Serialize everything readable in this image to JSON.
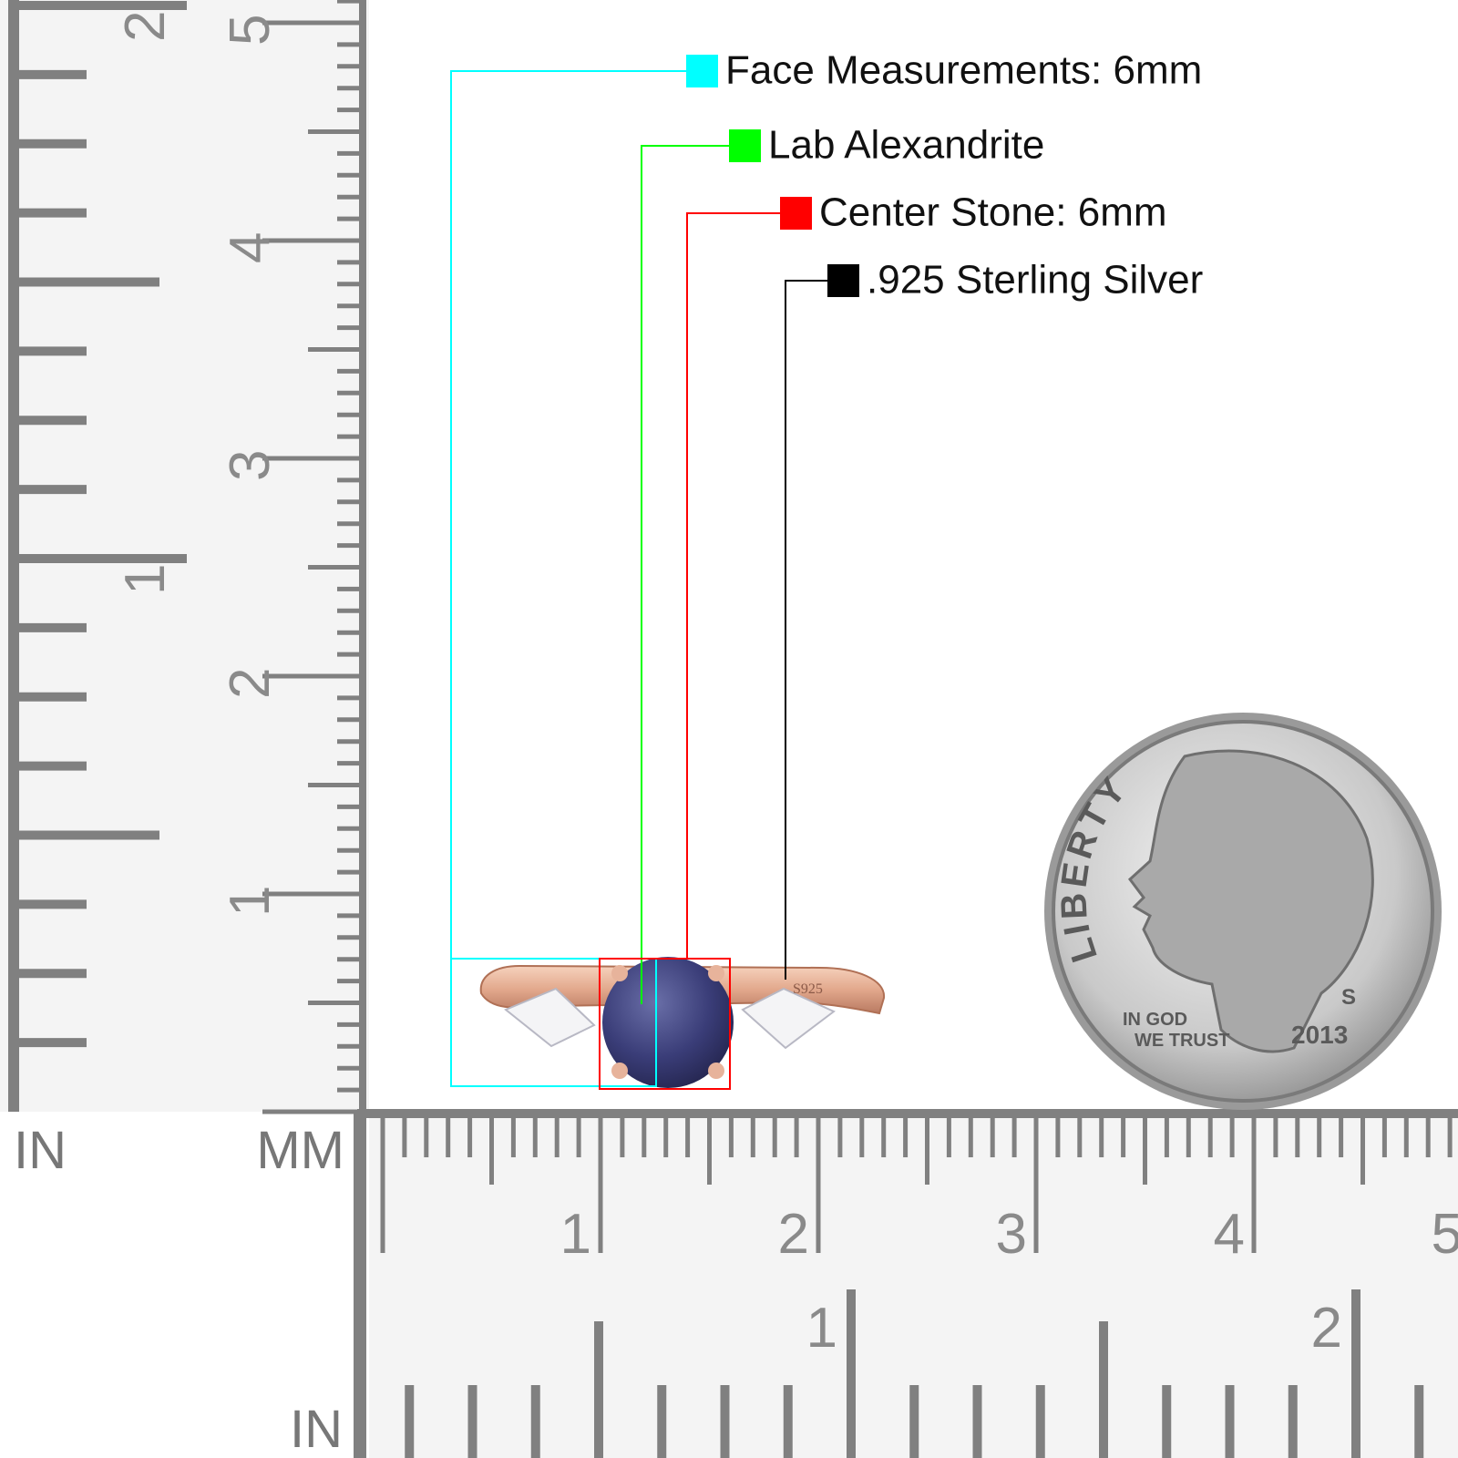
{
  "legend": [
    {
      "label": "Face Measurements: 6mm",
      "color": "#00ffff"
    },
    {
      "label": "Lab Alexandrite",
      "color": "#00ff00"
    },
    {
      "label": "Center Stone: 6mm",
      "color": "#ff0000"
    },
    {
      "label": ".925 Sterling Silver",
      "color": "#000000"
    }
  ],
  "ruler": {
    "left_unit": "IN",
    "mid_unit": "MM",
    "bottom_unit": "IN",
    "vertical_cm_labels": [
      "1",
      "2",
      "3",
      "4",
      "5"
    ],
    "vertical_in_labels": [
      "1",
      "2"
    ],
    "horizontal_cm_labels": [
      "1",
      "2",
      "3",
      "4",
      "5"
    ],
    "horizontal_in_labels": [
      "1",
      "2"
    ]
  },
  "coin": {
    "motto": "LIBERTY",
    "inscription_top": "IN GOD",
    "inscription_bottom": "WE TRUST",
    "mint": "S",
    "year": "2013"
  },
  "ring": {
    "hallmark": "S925"
  }
}
